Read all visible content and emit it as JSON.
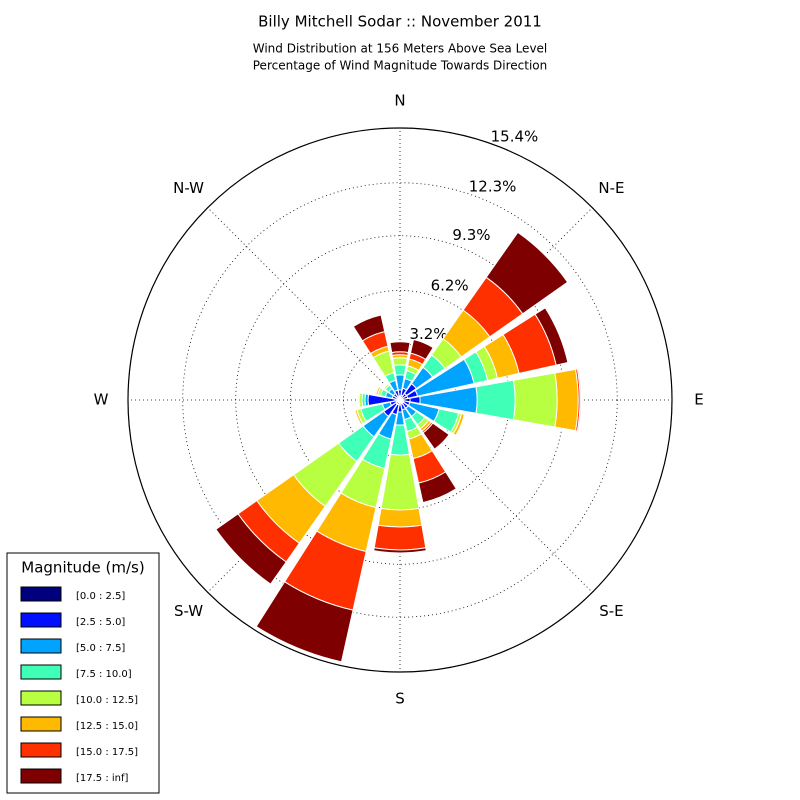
{
  "chart_data": {
    "type": "windrose",
    "title": "Billy Mitchell Sodar :: November 2011",
    "subtitle": [
      "Wind Distribution at 156 Meters Above Sea Level",
      "Percentage of Wind Magnitude Towards Direction"
    ],
    "categories": [
      "N",
      null,
      "N-E",
      null,
      "E",
      null,
      "S-E",
      null,
      "S",
      null,
      "S-W",
      null,
      "W",
      null,
      "N-W",
      null
    ],
    "ylim": [
      0,
      15.4
    ],
    "yticks": [
      {
        "value": 3.2,
        "label": "3.2%"
      },
      {
        "value": 6.2,
        "label": "6.2%"
      },
      {
        "value": 9.3,
        "label": "9.3%"
      },
      {
        "value": 12.3,
        "label": "12.3%"
      },
      {
        "value": 15.4,
        "label": "15.4%"
      }
    ],
    "grid": true,
    "legend_title": "Magnitude (m/s)",
    "legend_position": "lower-left",
    "series": [
      {
        "name": "[0.0 : 2.5]",
        "color": "#00007f",
        "values": [
          0.23,
          0.28,
          0.45,
          0.45,
          0.57,
          0.23,
          0.23,
          0.23,
          0.28,
          0.28,
          0.28,
          0.23,
          0.28,
          0.17,
          0.17,
          0.23
        ]
      },
      {
        "name": "[2.5 : 5.0]",
        "color": "#0010ff",
        "values": [
          0.34,
          0.4,
          0.68,
          0.57,
          0.57,
          0.34,
          0.34,
          0.34,
          0.4,
          0.57,
          0.85,
          0.34,
          1.53,
          0.28,
          0.28,
          0.34
        ]
      },
      {
        "name": "[5.0 : 7.5]",
        "color": "#00a4ff",
        "values": [
          0.85,
          0.57,
          1.13,
          3.28,
          3.23,
          1.7,
          0.57,
          0.57,
          0.74,
          1.42,
          1.42,
          0.45,
          0.17,
          0.4,
          0.34,
          0.57
        ]
      },
      {
        "name": "[7.5 : 10.0]",
        "color": "#40ffb7",
        "values": [
          0.57,
          0.45,
          0.85,
          0.79,
          2.15,
          1.13,
          0.57,
          0.68,
          1.7,
          1.7,
          1.7,
          1.25,
          0.17,
          0.28,
          0.23,
          0.45
        ]
      },
      {
        "name": "[10.0 : 12.5]",
        "color": "#b7ff40",
        "values": [
          0.4,
          0.28,
          1.13,
          0.57,
          2.38,
          0.17,
          0.28,
          0.45,
          3.11,
          2.27,
          3.11,
          0.23,
          0.17,
          0.17,
          0.11,
          1.25
        ]
      },
      {
        "name": "[12.5 : 15.0]",
        "color": "#ffb900",
        "values": [
          0.17,
          0.4,
          1.98,
          1.25,
          1.19,
          0.17,
          0.17,
          1.13,
          0.96,
          2.55,
          2.55,
          0.11,
          0.06,
          0.11,
          0.06,
          0.28
        ]
      },
      {
        "name": "[15.0 : 17.5]",
        "color": "#ff3000",
        "values": [
          0.17,
          0.34,
          2.27,
          2.15,
          0.11,
          0.06,
          0.11,
          1.42,
          1.3,
          3.4,
          1.3,
          0.06,
          0,
          0.06,
          0.06,
          0.85
        ]
      },
      {
        "name": "[17.5 : inf]",
        "color": "#7f0000",
        "values": [
          0.57,
          0.79,
          3.11,
          0.68,
          0.06,
          0,
          1.13,
          1.13,
          0.17,
          3.0,
          1.53,
          0,
          0,
          0,
          0,
          0.96
        ]
      }
    ]
  }
}
